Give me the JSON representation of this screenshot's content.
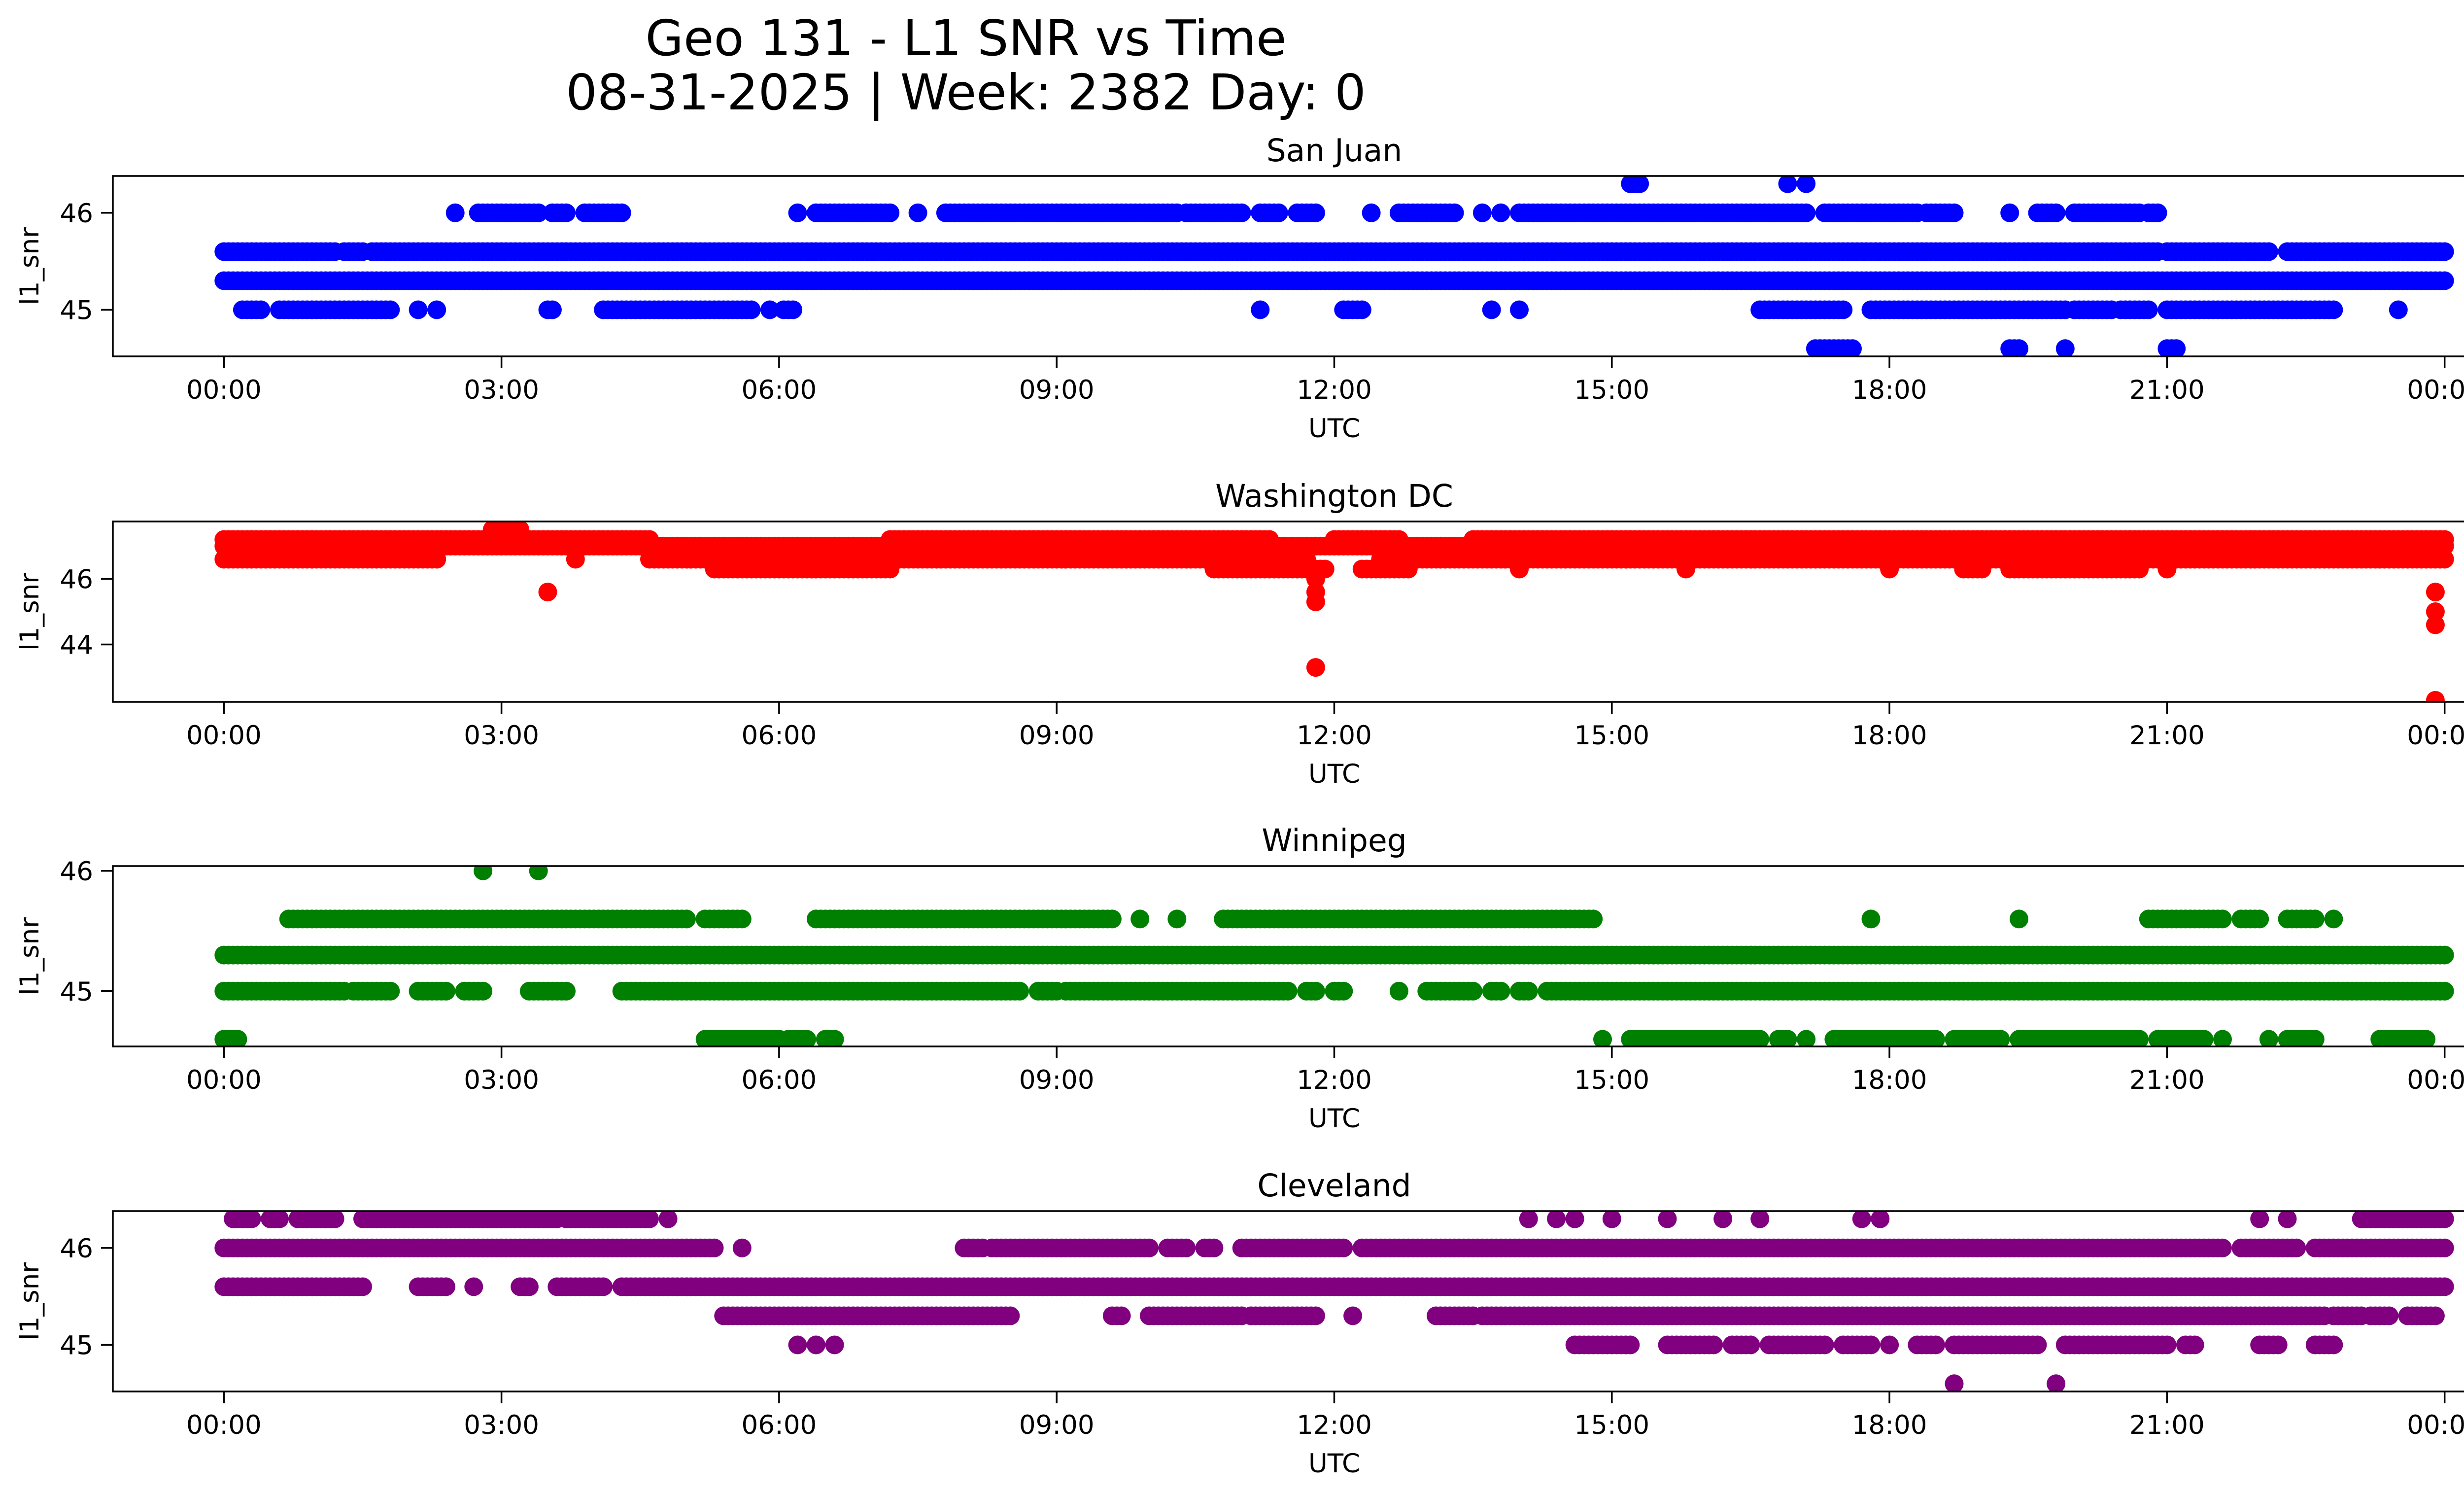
{
  "chart_data": {
    "type": "scatter",
    "title": "Geo 131 - L1 SNR vs Time",
    "subtitle": "08-31-2025 | Week: 2382 Day: 0",
    "x_ticks": [
      "00:00",
      "03:00",
      "06:00",
      "09:00",
      "12:00",
      "15:00",
      "18:00",
      "21:00",
      "00:00"
    ],
    "x_range_hours": [
      -1.2,
      25.2
    ],
    "xlabel": "UTC",
    "ylabel": "l1_snr",
    "panels": [
      {
        "title": "San Juan",
        "color": "#0000ff",
        "ylim": [
          44.52,
          46.38
        ],
        "yticks": [
          45,
          46
        ],
        "series": [
          {
            "level": 45.6,
            "segments": [
              [
                0.0,
                1.2
              ],
              [
                1.3,
                1.5
              ],
              [
                1.6,
                20.9
              ],
              [
                21.0,
                22.1
              ],
              [
                22.3,
                24.0
              ]
            ]
          },
          {
            "level": 45.3,
            "segments": [
              [
                0.0,
                24.0
              ]
            ]
          },
          {
            "level": 46.0,
            "segments": [
              [
                2.5,
                2.5
              ],
              [
                2.75,
                3.4
              ],
              [
                3.55,
                3.7
              ],
              [
                3.9,
                4.3
              ],
              [
                6.2,
                6.2
              ],
              [
                6.4,
                7.2
              ],
              [
                7.5,
                7.5
              ],
              [
                7.8,
                10.3
              ],
              [
                10.4,
                11.0
              ],
              [
                11.2,
                11.4
              ],
              [
                11.6,
                11.8
              ],
              [
                12.4,
                12.4
              ],
              [
                12.7,
                13.3
              ],
              [
                13.6,
                13.6
              ],
              [
                13.8,
                13.8
              ],
              [
                14.0,
                17.1
              ],
              [
                17.3,
                18.3
              ],
              [
                18.4,
                18.7
              ],
              [
                19.3,
                19.3
              ],
              [
                19.6,
                19.8
              ],
              [
                20.0,
                20.7
              ],
              [
                20.8,
                20.9
              ]
            ]
          },
          {
            "level": 45.0,
            "segments": [
              [
                0.2,
                0.4
              ],
              [
                0.6,
                1.8
              ],
              [
                2.1,
                2.1
              ],
              [
                2.3,
                2.3
              ],
              [
                3.5,
                3.55
              ],
              [
                4.1,
                5.7
              ],
              [
                5.9,
                5.9
              ],
              [
                6.05,
                6.15
              ],
              [
                11.2,
                11.2
              ],
              [
                12.1,
                12.3
              ],
              [
                13.7,
                13.7
              ],
              [
                14.0,
                14.0
              ],
              [
                16.6,
                17.5
              ],
              [
                17.8,
                19.9
              ],
              [
                20.0,
                20.4
              ],
              [
                20.5,
                20.8
              ],
              [
                21.0,
                22.8
              ],
              [
                23.5,
                23.5
              ]
            ]
          },
          {
            "level": 46.3,
            "segments": [
              [
                15.2,
                15.3
              ],
              [
                16.9,
                16.9
              ],
              [
                17.1,
                17.1
              ]
            ]
          },
          {
            "level": 44.6,
            "segments": [
              [
                17.2,
                17.6
              ],
              [
                19.3,
                19.4
              ],
              [
                19.9,
                19.9
              ],
              [
                21.0,
                21.1
              ]
            ]
          }
        ]
      },
      {
        "title": "Washington DC",
        "color": "#ff0000",
        "ylim": [
          42.25,
          47.75
        ],
        "yticks": [
          44,
          46
        ],
        "series": [
          {
            "level": 47.2,
            "segments": [
              [
                0.0,
                4.6
              ],
              [
                7.2,
                11.3
              ],
              [
                12.0,
                12.7
              ],
              [
                13.5,
                24.0
              ]
            ]
          },
          {
            "level": 47.0,
            "segments": [
              [
                0.0,
                11.8
              ],
              [
                11.8,
                24.0
              ]
            ]
          },
          {
            "level": 46.6,
            "segments": [
              [
                0.0,
                2.3
              ],
              [
                4.6,
                11.7
              ],
              [
                12.5,
                24.0
              ]
            ]
          },
          {
            "level": 46.3,
            "segments": [
              [
                5.3,
                7.2
              ],
              [
                10.7,
                11.9
              ],
              [
                12.3,
                12.8
              ],
              [
                14.0,
                14.0
              ],
              [
                15.8,
                15.8
              ],
              [
                18.0,
                18.0
              ],
              [
                18.8,
                19.0
              ],
              [
                19.3,
                20.7
              ],
              [
                21.0,
                21.0
              ]
            ]
          },
          {
            "level": 47.5,
            "segments": [
              [
                2.9,
                3.2
              ]
            ]
          },
          {
            "level": 45.6,
            "segments": [
              [
                3.5,
                3.5
              ],
              [
                11.8,
                11.8
              ],
              [
                23.9,
                23.9
              ]
            ]
          },
          {
            "level": 46.6,
            "segments": [
              [
                3.8,
                3.8
              ]
            ]
          },
          {
            "level": 46.0,
            "segments": [
              [
                11.8,
                11.8
              ]
            ]
          },
          {
            "level": 45.3,
            "segments": [
              [
                11.8,
                11.8
              ]
            ]
          },
          {
            "level": 43.3,
            "segments": [
              [
                11.8,
                11.8
              ]
            ]
          },
          {
            "level": 45.0,
            "segments": [
              [
                23.9,
                23.9
              ]
            ]
          },
          {
            "level": 44.6,
            "segments": [
              [
                23.9,
                23.9
              ]
            ]
          },
          {
            "level": 42.3,
            "segments": [
              [
                23.9,
                23.9
              ]
            ]
          }
        ]
      },
      {
        "title": "Winnipeg",
        "color": "#008000",
        "ylim": [
          44.54,
          46.04
        ],
        "yticks": [
          45,
          46
        ],
        "series": [
          {
            "level": 45.3,
            "segments": [
              [
                0.0,
                24.0
              ]
            ]
          },
          {
            "level": 45.0,
            "segments": [
              [
                0.0,
                1.3
              ],
              [
                1.4,
                1.8
              ],
              [
                2.1,
                2.4
              ],
              [
                2.6,
                2.8
              ],
              [
                3.3,
                3.7
              ],
              [
                4.3,
                8.6
              ],
              [
                8.8,
                9.0
              ],
              [
                9.1,
                11.5
              ],
              [
                11.7,
                11.8
              ],
              [
                12.0,
                12.1
              ],
              [
                12.7,
                12.7
              ],
              [
                13.0,
                13.5
              ],
              [
                13.7,
                13.8
              ],
              [
                14.0,
                14.1
              ],
              [
                14.3,
                24.0
              ]
            ]
          },
          {
            "level": 45.6,
            "segments": [
              [
                0.7,
                5.0
              ],
              [
                5.2,
                5.6
              ],
              [
                6.4,
                9.6
              ],
              [
                9.9,
                9.9
              ],
              [
                10.3,
                10.3
              ],
              [
                10.8,
                14.8
              ],
              [
                17.8,
                17.8
              ],
              [
                19.4,
                19.4
              ],
              [
                20.8,
                21.6
              ],
              [
                21.8,
                22.0
              ],
              [
                22.3,
                22.6
              ],
              [
                22.8,
                22.8
              ]
            ]
          },
          {
            "level": 44.6,
            "segments": [
              [
                0.0,
                0.15
              ],
              [
                5.2,
                6.0
              ],
              [
                6.1,
                6.3
              ],
              [
                6.5,
                6.6
              ],
              [
                14.9,
                14.9
              ],
              [
                15.2,
                16.6
              ],
              [
                16.8,
                16.9
              ],
              [
                17.1,
                17.1
              ],
              [
                17.4,
                18.5
              ],
              [
                18.7,
                19.2
              ],
              [
                19.4,
                20.7
              ],
              [
                20.9,
                21.4
              ],
              [
                21.6,
                21.6
              ],
              [
                22.1,
                22.1
              ],
              [
                22.3,
                22.6
              ],
              [
                23.3,
                23.8
              ]
            ]
          },
          {
            "level": 46.0,
            "segments": [
              [
                2.8,
                2.8
              ],
              [
                3.4,
                3.4
              ]
            ]
          }
        ]
      },
      {
        "title": "Cleveland",
        "color": "#800080",
        "ylim": [
          44.52,
          46.38
        ],
        "yticks": [
          45,
          46
        ],
        "series": [
          {
            "level": 46.0,
            "segments": [
              [
                0.0,
                5.3
              ],
              [
                5.6,
                5.6
              ],
              [
                8.0,
                8.2
              ],
              [
                8.3,
                10.0
              ],
              [
                10.2,
                10.4
              ],
              [
                10.6,
                10.7
              ],
              [
                11.0,
                12.1
              ],
              [
                12.3,
                21.6
              ],
              [
                21.8,
                22.4
              ],
              [
                22.6,
                24.0
              ]
            ]
          },
          {
            "level": 45.6,
            "segments": [
              [
                0.0,
                1.5
              ],
              [
                2.1,
                2.4
              ],
              [
                2.7,
                2.7
              ],
              [
                3.2,
                3.3
              ],
              [
                3.6,
                4.1
              ],
              [
                4.3,
                24.0
              ]
            ]
          },
          {
            "level": 45.3,
            "segments": [
              [
                5.4,
                8.5
              ],
              [
                9.6,
                9.7
              ],
              [
                10.0,
                11.0
              ],
              [
                11.1,
                11.8
              ],
              [
                12.2,
                12.2
              ],
              [
                13.1,
                13.5
              ],
              [
                13.6,
                22.7
              ],
              [
                22.8,
                23.1
              ],
              [
                23.2,
                23.4
              ],
              [
                23.6,
                23.9
              ]
            ]
          },
          {
            "level": 46.3,
            "segments": [
              [
                0.1,
                0.3
              ],
              [
                0.5,
                0.6
              ],
              [
                0.8,
                1.2
              ],
              [
                1.5,
                3.6
              ],
              [
                3.7,
                4.6
              ],
              [
                4.8,
                4.8
              ],
              [
                14.1,
                14.1
              ],
              [
                14.4,
                14.4
              ],
              [
                14.6,
                14.6
              ],
              [
                15.0,
                15.0
              ],
              [
                15.6,
                15.6
              ],
              [
                16.2,
                16.2
              ],
              [
                16.6,
                16.6
              ],
              [
                17.7,
                17.7
              ],
              [
                17.9,
                17.9
              ],
              [
                22.0,
                22.0
              ],
              [
                22.3,
                22.3
              ],
              [
                23.1,
                24.0
              ]
            ]
          },
          {
            "level": 45.0,
            "segments": [
              [
                6.2,
                6.2
              ],
              [
                6.4,
                6.4
              ],
              [
                6.6,
                6.6
              ],
              [
                14.6,
                15.2
              ],
              [
                15.6,
                16.1
              ],
              [
                16.3,
                16.5
              ],
              [
                16.7,
                17.3
              ],
              [
                17.5,
                17.8
              ],
              [
                18.0,
                18.0
              ],
              [
                18.3,
                18.5
              ],
              [
                18.7,
                19.6
              ],
              [
                19.9,
                21.0
              ],
              [
                21.2,
                21.3
              ],
              [
                22.0,
                22.2
              ],
              [
                22.6,
                22.8
              ]
            ]
          },
          {
            "level": 44.6,
            "segments": [
              [
                18.7,
                18.7
              ],
              [
                19.8,
                19.8
              ]
            ]
          }
        ]
      }
    ]
  }
}
